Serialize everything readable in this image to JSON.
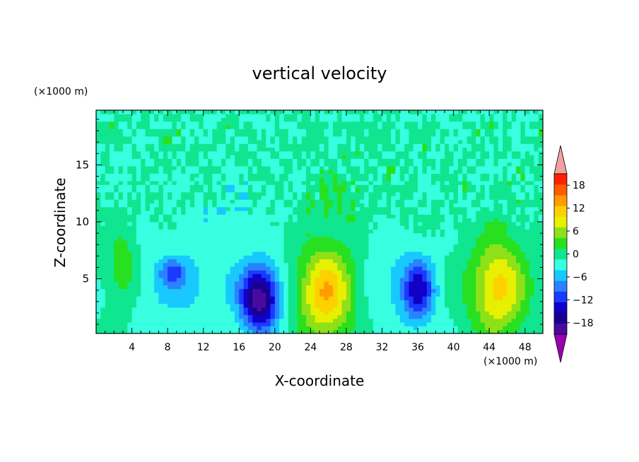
{
  "chart_data": {
    "type": "heatmap",
    "title": "vertical velocity",
    "xlabel": "X-coordinate",
    "ylabel": "Z-coordinate",
    "x_unit": "(×1000 m)",
    "y_unit": "(×1000 m)",
    "xlim": [
      0,
      50
    ],
    "ylim": [
      0.2,
      19.8
    ],
    "x_ticks": [
      4,
      8,
      12,
      16,
      20,
      24,
      28,
      32,
      36,
      40,
      44,
      48
    ],
    "y_ticks": [
      5,
      10,
      15
    ],
    "colorbar": {
      "levels": [
        -21,
        -18,
        -15,
        -12,
        -9,
        -6,
        -3,
        0,
        3,
        6,
        9,
        12,
        15,
        18,
        21
      ],
      "labels": [
        -18,
        -12,
        -6,
        0,
        6,
        12,
        18
      ],
      "colors": [
        "#4a0aa0",
        "#1a0090",
        "#1000c8",
        "#1a3aff",
        "#2a82ff",
        "#18c8ff",
        "#38ffe0",
        "#10e690",
        "#28e020",
        "#8ee018",
        "#e6f000",
        "#ffd000",
        "#ff9c00",
        "#ff5a00",
        "#ff2000"
      ],
      "under_color": "#9a00b0",
      "over_color": "#f4a0a0",
      "extend": "both"
    },
    "features": [
      {
        "x": 3.0,
        "z": 5.8,
        "peak": 6,
        "sx": 1.3,
        "sz": 2.4
      },
      {
        "x": 8.6,
        "z": 5.6,
        "peak": -7,
        "sx": 1.0,
        "sz": 0.8
      },
      {
        "x": 9.5,
        "z": 4.5,
        "peak": -4,
        "sx": 4.5,
        "sz": 2.5
      },
      {
        "x": 18.3,
        "z": 3.3,
        "peak": -20,
        "sx": 1.5,
        "sz": 2.0
      },
      {
        "x": 25.7,
        "z": 3.8,
        "peak": 15,
        "sx": 2.1,
        "sz": 2.8
      },
      {
        "x": 32.5,
        "z": 5.0,
        "peak": -3,
        "sx": 1.5,
        "sz": 3.0
      },
      {
        "x": 36.0,
        "z": 4.0,
        "peak": -14,
        "sx": 1.3,
        "sz": 2.0
      },
      {
        "x": 45.0,
        "z": 4.2,
        "peak": 13,
        "sx": 2.2,
        "sz": 3.0
      },
      {
        "x": 27.0,
        "z": 12.0,
        "peak": 2,
        "sx": 3.0,
        "sz": 2.0
      },
      {
        "x": 14.0,
        "z": 11.0,
        "peak": -2,
        "sx": 4.0,
        "sz": 2.0
      }
    ]
  }
}
